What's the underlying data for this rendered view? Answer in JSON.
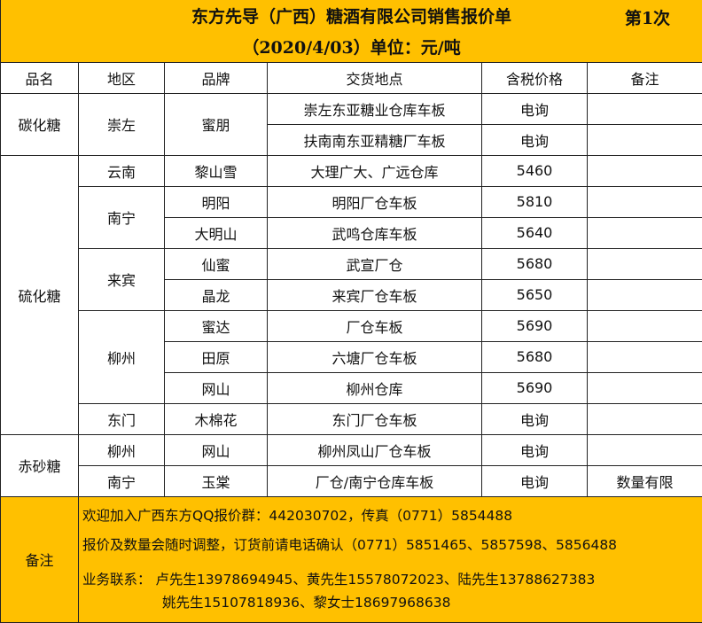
{
  "title": {
    "line1": "东方先导（广西）糖酒有限公司销售报价单",
    "batch": "第1次",
    "line2": "（2020/4/03）单位：元/吨"
  },
  "headers": [
    "品名",
    "地区",
    "品牌",
    "交货地点",
    "含税价格",
    "备注"
  ],
  "rows": [
    {
      "product": "碳化糖",
      "region": "崇左",
      "brand": "蜜朋",
      "location": "崇左东亚糖业仓库车板",
      "price": "电询",
      "note": ""
    },
    {
      "location": "扶南南东亚精糖厂车板",
      "price": "电询",
      "note": ""
    },
    {
      "product": "硫化糖",
      "region": "云南",
      "brand": "黎山雪",
      "location": "大理广大、广远仓库",
      "price": "5460",
      "note": ""
    },
    {
      "region": "南宁",
      "brand": "明阳",
      "location": "明阳厂仓车板",
      "price": "5810",
      "note": ""
    },
    {
      "brand": "大明山",
      "location": "武鸣仓库车板",
      "price": "5640",
      "note": ""
    },
    {
      "region": "来宾",
      "brand": "仙蜜",
      "location": "武宣厂仓",
      "price": "5680",
      "note": ""
    },
    {
      "brand": "晶龙",
      "location": "来宾厂仓车板",
      "price": "5650",
      "note": ""
    },
    {
      "region": "柳州",
      "brand": "蜜达",
      "location": "厂仓车板",
      "price": "5690",
      "note": ""
    },
    {
      "brand": "田原",
      "location": "六塘厂仓车板",
      "price": "5680",
      "note": ""
    },
    {
      "brand": "网山",
      "location": "柳州仓库",
      "price": "5690",
      "note": ""
    },
    {
      "region": "东门",
      "brand": "木棉花",
      "location": "东门厂仓车板",
      "price": "电询",
      "note": ""
    },
    {
      "product": "赤砂糖",
      "region": "柳州",
      "brand": "网山",
      "location": "柳州凤山厂仓车板",
      "price": "电询",
      "note": ""
    },
    {
      "region": "南宁",
      "brand": "玉棠",
      "location": "厂仓/南宁仓库车板",
      "price": "电询",
      "note": "数量有限"
    }
  ],
  "footer": {
    "label": "备注",
    "lines": [
      "欢迎加入广西东方QQ报价群：442030702，传真（0771）5854488",
      "报价及数量会随时调整，订货前请电话确认（0771）5851465、5857598、5856488",
      "业务联系： 卢先生13978694945、黄先生15578072023、陆先生13788627383",
      "姚先生15107818936、黎女士18697968638"
    ]
  },
  "colors": {
    "header_fill": "#FFC000"
  }
}
